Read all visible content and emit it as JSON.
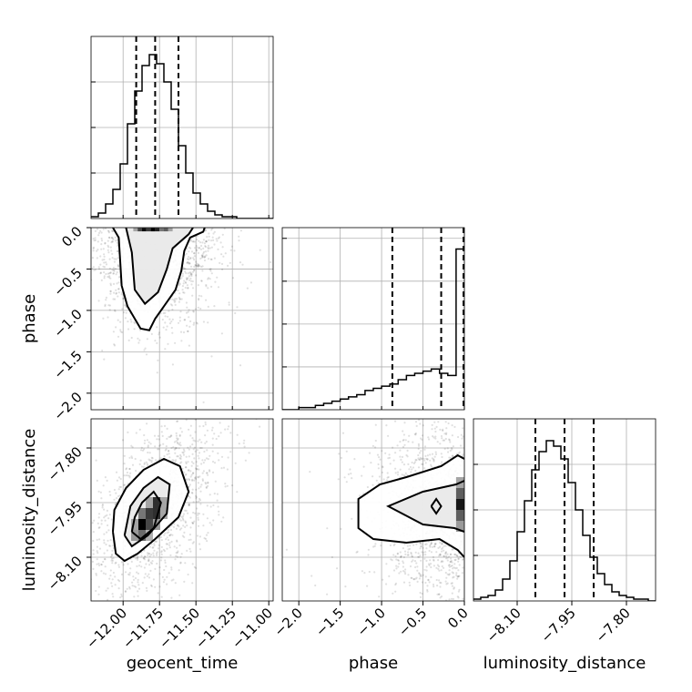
{
  "chart_data": {
    "type": "corner",
    "parameters": [
      {
        "name": "geocent_time",
        "label": "geocent_time",
        "range": [
          -12.22,
          -10.97
        ],
        "ticks": [
          -12.0,
          -11.75,
          -11.5,
          -11.25,
          -11.0
        ],
        "tick_labels": [
          "−12.00",
          "−11.75",
          "−11.50",
          "−11.25",
          "−11.00"
        ]
      },
      {
        "name": "phase",
        "label": "phase",
        "range": [
          -2.2,
          0.0
        ],
        "ticks": [
          -2.0,
          -1.5,
          -1.0,
          -0.5,
          0.0
        ],
        "tick_labels": [
          "−2.0",
          "−1.5",
          "−1.0",
          "−0.5",
          "0.0"
        ]
      },
      {
        "name": "luminosity_distance",
        "label": "luminosity_distance",
        "range": [
          -8.22,
          -7.72
        ],
        "ticks": [
          -8.1,
          -7.95,
          -7.8
        ],
        "tick_labels": [
          "−8.10",
          "−7.95",
          "−7.80"
        ]
      }
    ],
    "marginals": [
      {
        "parameter": "geocent_time",
        "quantiles": [
          -11.91,
          -11.78,
          -11.62
        ],
        "bin_edges": [
          -12.22,
          -12.17,
          -12.12,
          -12.07,
          -12.02,
          -11.97,
          -11.92,
          -11.87,
          -11.82,
          -11.77,
          -11.72,
          -11.67,
          -11.62,
          -11.57,
          -11.52,
          -11.47,
          -11.42,
          -11.37,
          -11.32,
          -11.27,
          -11.22,
          -11.17,
          -11.12,
          -11.07,
          -11.02,
          -10.97
        ],
        "counts": [
          1,
          3,
          8,
          16,
          30,
          52,
          70,
          84,
          90,
          85,
          75,
          60,
          40,
          25,
          14,
          8,
          4,
          2,
          1,
          1,
          0,
          0,
          0,
          0,
          0
        ],
        "ylim": [
          0,
          100
        ],
        "gridlines": [
          25,
          50,
          75
        ]
      },
      {
        "parameter": "phase",
        "quantiles": [
          -0.87,
          -0.28,
          -0.01
        ],
        "bin_edges": [
          -2.2,
          -2.1,
          -2.0,
          -1.9,
          -1.8,
          -1.7,
          -1.6,
          -1.5,
          -1.4,
          -1.3,
          -1.2,
          -1.1,
          -1.0,
          -0.9,
          -0.8,
          -0.7,
          -0.6,
          -0.5,
          -0.4,
          -0.3,
          -0.2,
          -0.1,
          0.0
        ],
        "counts": [
          0,
          0,
          1,
          1,
          2,
          3,
          4,
          5,
          6,
          7,
          9,
          10,
          11,
          12,
          14,
          16,
          17,
          18,
          19,
          17,
          16,
          75
        ],
        "ylim": [
          0,
          85
        ],
        "gridlines": [
          20,
          40,
          60,
          80
        ]
      },
      {
        "parameter": "luminosity_distance",
        "quantiles": [
          -8.05,
          -7.97,
          -7.89
        ],
        "bin_edges": [
          -8.22,
          -8.2,
          -8.18,
          -8.16,
          -8.14,
          -8.12,
          -8.1,
          -8.08,
          -8.06,
          -8.04,
          -8.02,
          -8.0,
          -7.98,
          -7.96,
          -7.94,
          -7.92,
          -7.9,
          -7.88,
          -7.86,
          -7.84,
          -7.82,
          -7.8,
          -7.78,
          -7.76,
          -7.74,
          -7.72
        ],
        "counts": [
          1,
          2,
          3,
          6,
          12,
          22,
          38,
          55,
          72,
          82,
          88,
          85,
          78,
          65,
          50,
          36,
          24,
          15,
          9,
          5,
          3,
          2,
          1,
          1,
          0
        ],
        "ylim": [
          0,
          100
        ],
        "gridlines": [
          25,
          50,
          75
        ]
      }
    ],
    "joints": [
      {
        "x": "geocent_time",
        "y": "phase",
        "density_cells": [
          {
            "x": -11.915,
            "y": -0.025,
            "w": 0.03,
            "h": 0.04,
            "v": 0.3
          },
          {
            "x": -11.885,
            "y": -0.025,
            "w": 0.03,
            "h": 0.04,
            "v": 0.7
          },
          {
            "x": -11.855,
            "y": -0.025,
            "w": 0.03,
            "h": 0.04,
            "v": 0.95
          },
          {
            "x": -11.825,
            "y": -0.025,
            "w": 0.03,
            "h": 0.04,
            "v": 0.75
          },
          {
            "x": -11.795,
            "y": -0.025,
            "w": 0.03,
            "h": 0.04,
            "v": 1.0
          },
          {
            "x": -11.765,
            "y": -0.025,
            "w": 0.03,
            "h": 0.04,
            "v": 0.85
          },
          {
            "x": -11.735,
            "y": -0.025,
            "w": 0.03,
            "h": 0.04,
            "v": 0.5
          },
          {
            "x": -11.705,
            "y": -0.025,
            "w": 0.03,
            "h": 0.04,
            "v": 0.6
          },
          {
            "x": -11.675,
            "y": -0.025,
            "w": 0.03,
            "h": 0.04,
            "v": 0.3
          }
        ],
        "contours": [
          [
            [
              -12.07,
              0.0
            ],
            [
              -12.03,
              -0.12
            ],
            [
              -12.02,
              -0.4
            ],
            [
              -12.01,
              -0.7
            ],
            [
              -11.97,
              -0.95
            ],
            [
              -11.92,
              -1.1
            ],
            [
              -11.88,
              -1.22
            ],
            [
              -11.82,
              -1.24
            ],
            [
              -11.78,
              -1.1
            ],
            [
              -11.72,
              -0.95
            ],
            [
              -11.64,
              -0.75
            ],
            [
              -11.6,
              -0.52
            ],
            [
              -11.58,
              -0.28
            ],
            [
              -11.54,
              -0.12
            ],
            [
              -11.45,
              -0.05
            ],
            [
              -11.44,
              0.0
            ]
          ],
          [
            [
              -11.98,
              0.0
            ],
            [
              -11.94,
              -0.3
            ],
            [
              -11.92,
              -0.75
            ],
            [
              -11.85,
              -0.92
            ],
            [
              -11.76,
              -0.78
            ],
            [
              -11.7,
              -0.5
            ],
            [
              -11.66,
              -0.25
            ],
            [
              -11.55,
              -0.08
            ],
            [
              -11.52,
              0.0
            ]
          ]
        ]
      },
      {
        "x": "geocent_time",
        "y": "luminosity_distance",
        "density_cells": [
          {
            "x": -11.82,
            "y": -7.95,
            "w": 0.05,
            "h": 0.03,
            "v": 0.3
          },
          {
            "x": -11.77,
            "y": -7.95,
            "w": 0.05,
            "h": 0.03,
            "v": 0.8
          },
          {
            "x": -11.72,
            "y": -7.95,
            "w": 0.05,
            "h": 0.03,
            "v": 0.3
          },
          {
            "x": -11.87,
            "y": -7.98,
            "w": 0.05,
            "h": 0.03,
            "v": 0.5
          },
          {
            "x": -11.82,
            "y": -7.98,
            "w": 0.05,
            "h": 0.03,
            "v": 0.75
          },
          {
            "x": -11.77,
            "y": -7.98,
            "w": 0.05,
            "h": 0.03,
            "v": 0.8
          },
          {
            "x": -11.72,
            "y": -7.98,
            "w": 0.05,
            "h": 0.03,
            "v": 0.3
          },
          {
            "x": -11.92,
            "y": -8.01,
            "w": 0.05,
            "h": 0.03,
            "v": 0.3
          },
          {
            "x": -11.87,
            "y": -8.01,
            "w": 0.05,
            "h": 0.03,
            "v": 1.0
          },
          {
            "x": -11.82,
            "y": -8.01,
            "w": 0.05,
            "h": 0.03,
            "v": 0.7
          },
          {
            "x": -11.77,
            "y": -8.01,
            "w": 0.05,
            "h": 0.03,
            "v": 0.35
          },
          {
            "x": -11.92,
            "y": -8.04,
            "w": 0.05,
            "h": 0.03,
            "v": 0.35
          },
          {
            "x": -11.87,
            "y": -8.04,
            "w": 0.05,
            "h": 0.03,
            "v": 0.55
          },
          {
            "x": -11.82,
            "y": -8.04,
            "w": 0.05,
            "h": 0.03,
            "v": 0.25
          }
        ],
        "contours": [
          [
            [
              -12.07,
              -8.03
            ],
            [
              -12.05,
              -8.09
            ],
            [
              -11.99,
              -8.11
            ],
            [
              -11.9,
              -8.09
            ],
            [
              -11.78,
              -8.05
            ],
            [
              -11.62,
              -7.99
            ],
            [
              -11.55,
              -7.92
            ],
            [
              -11.61,
              -7.85
            ],
            [
              -11.72,
              -7.83
            ],
            [
              -11.86,
              -7.86
            ],
            [
              -11.98,
              -7.91
            ],
            [
              -12.06,
              -7.97
            ],
            [
              -12.07,
              -8.03
            ]
          ],
          [
            [
              -11.99,
              -8.04
            ],
            [
              -11.94,
              -8.07
            ],
            [
              -11.83,
              -8.04
            ],
            [
              -11.7,
              -7.98
            ],
            [
              -11.68,
              -7.9
            ],
            [
              -11.76,
              -7.88
            ],
            [
              -11.86,
              -7.91
            ],
            [
              -11.95,
              -7.96
            ],
            [
              -11.99,
              -8.04
            ]
          ],
          [
            [
              -11.94,
              -8.03
            ],
            [
              -11.88,
              -8.05
            ],
            [
              -11.79,
              -8.02
            ],
            [
              -11.74,
              -7.95
            ],
            [
              -11.79,
              -7.92
            ],
            [
              -11.87,
              -7.95
            ],
            [
              -11.92,
              -7.99
            ],
            [
              -11.94,
              -8.03
            ]
          ]
        ]
      },
      {
        "x": "phase",
        "y": "luminosity_distance",
        "density_cells": [
          {
            "x": -0.05,
            "y": -7.895,
            "w": 0.1,
            "h": 0.03,
            "v": 0.3
          },
          {
            "x": -0.05,
            "y": -7.925,
            "w": 0.1,
            "h": 0.03,
            "v": 0.6
          },
          {
            "x": -0.05,
            "y": -7.955,
            "w": 0.1,
            "h": 0.03,
            "v": 0.9
          },
          {
            "x": -0.05,
            "y": -7.985,
            "w": 0.1,
            "h": 0.03,
            "v": 0.6
          },
          {
            "x": -0.05,
            "y": -8.015,
            "w": 0.1,
            "h": 0.03,
            "v": 0.35
          }
        ],
        "contours": [
          [
            [
              0.0,
              -7.83
            ],
            [
              -0.08,
              -7.82
            ],
            [
              -0.28,
              -7.85
            ],
            [
              -0.7,
              -7.88
            ],
            [
              -1.02,
              -7.9
            ],
            [
              -1.28,
              -7.94
            ],
            [
              -1.28,
              -8.02
            ],
            [
              -1.1,
              -8.05
            ],
            [
              -0.7,
              -8.06
            ],
            [
              -0.3,
              -8.05
            ],
            [
              -0.08,
              -8.08
            ],
            [
              0.0,
              -8.1
            ]
          ],
          [
            [
              0.0,
              -7.89
            ],
            [
              -0.1,
              -7.9
            ],
            [
              -0.5,
              -7.92
            ],
            [
              -0.92,
              -7.96
            ],
            [
              -0.5,
              -8.01
            ],
            [
              -0.12,
              -8.02
            ],
            [
              0.0,
              -8.03
            ]
          ],
          [
            [
              -0.4,
              -7.96
            ],
            [
              -0.34,
              -7.98
            ],
            [
              -0.28,
              -7.96
            ],
            [
              -0.34,
              -7.94
            ],
            [
              -0.4,
              -7.96
            ]
          ]
        ]
      }
    ]
  }
}
